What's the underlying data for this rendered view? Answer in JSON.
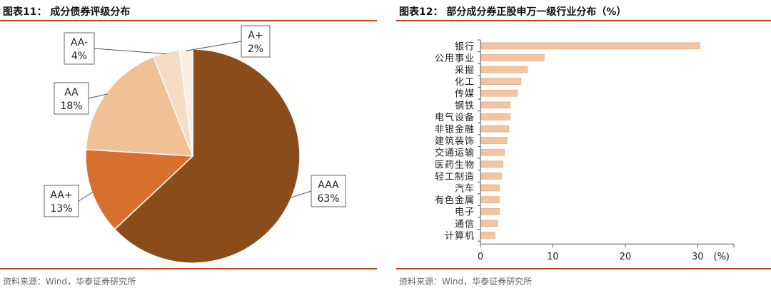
{
  "left": {
    "title": "图表11：  成分债券评级分布",
    "source": "资料来源：Wind，华泰证券研究所",
    "chart_data": {
      "type": "pie",
      "slices": [
        {
          "label": "AAA",
          "value": 63,
          "pct": "63%",
          "color": "#8b4c1c"
        },
        {
          "label": "AA+",
          "value": 13,
          "pct": "13%",
          "color": "#d7702f"
        },
        {
          "label": "AA",
          "value": 18,
          "pct": "18%",
          "color": "#f0c197"
        },
        {
          "label": "AA-",
          "value": 4,
          "pct": "4%",
          "color": "#f6dcc4"
        },
        {
          "label": "A+",
          "value": 2,
          "pct": "2%",
          "color": "#fbeee0"
        }
      ]
    }
  },
  "right": {
    "title": "图表12：  部分成分券正股申万一级行业分布（%）",
    "source": "资料来源：Wind，华泰证券研究所",
    "chart_data": {
      "type": "bar",
      "orientation": "horizontal",
      "categories": [
        "银行",
        "公用事业",
        "采掘",
        "化工",
        "传媒",
        "钢铁",
        "电气设备",
        "非银金融",
        "建筑装饰",
        "交通运输",
        "医药生物",
        "轻工制造",
        "汽车",
        "有色金属",
        "电子",
        "通信",
        "计算机"
      ],
      "values": [
        30.3,
        8.8,
        6.5,
        5.6,
        5.1,
        4.1,
        4.1,
        3.9,
        3.7,
        3.3,
        3.1,
        2.9,
        2.6,
        2.6,
        2.6,
        2.4,
        2.0
      ],
      "xlim": [
        0,
        35
      ],
      "xticks": [
        0,
        10,
        20,
        30
      ],
      "unit_label": "(%)",
      "bar_color": "#f2c4a0"
    }
  }
}
